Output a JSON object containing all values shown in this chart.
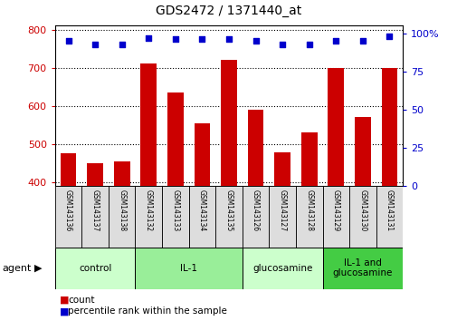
{
  "title": "GDS2472 / 1371440_at",
  "samples": [
    "GSM143136",
    "GSM143137",
    "GSM143138",
    "GSM143132",
    "GSM143133",
    "GSM143134",
    "GSM143135",
    "GSM143126",
    "GSM143127",
    "GSM143128",
    "GSM143129",
    "GSM143130",
    "GSM143131"
  ],
  "counts": [
    475,
    450,
    455,
    710,
    635,
    555,
    720,
    590,
    478,
    530,
    700,
    570,
    700
  ],
  "percentiles": [
    95,
    93,
    93,
    97,
    96,
    96,
    96,
    95,
    93,
    93,
    95,
    95,
    98
  ],
  "groups": [
    {
      "label": "control",
      "start": 0,
      "end": 3,
      "color": "#ccffcc"
    },
    {
      "label": "IL-1",
      "start": 3,
      "end": 7,
      "color": "#99ee99"
    },
    {
      "label": "glucosamine",
      "start": 7,
      "end": 10,
      "color": "#ccffcc"
    },
    {
      "label": "IL-1 and\nglucosamine",
      "start": 10,
      "end": 13,
      "color": "#44cc44"
    }
  ],
  "ylim_left": [
    390,
    810
  ],
  "ylim_right": [
    0,
    105
  ],
  "yticks_left": [
    400,
    500,
    600,
    700,
    800
  ],
  "yticks_right": [
    0,
    25,
    50,
    75,
    100
  ],
  "bar_color": "#cc0000",
  "dot_color": "#0000cc",
  "bar_width": 0.6,
  "bg_color": "#ffffff",
  "grid_color": "#555555",
  "sample_box_color": "#dddddd",
  "agent_label": "agent",
  "legend_count_label": "count",
  "legend_pct_label": "percentile rank within the sample"
}
